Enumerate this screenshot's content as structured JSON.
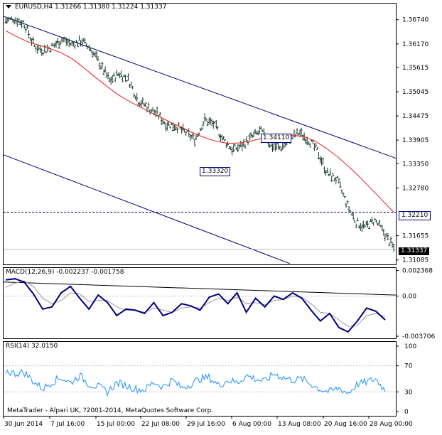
{
  "colors": {
    "candle": "#1c3f2e",
    "ma": "#e02020",
    "channel": "#000080",
    "macd_main": "#000080",
    "macd_signal": "#9a9a9a",
    "rsi": "#1e90ff",
    "level_line": "#000080",
    "tag_bg": "#ffffff",
    "tag_border": "#000080"
  },
  "main": {
    "header": "EURUSD,H4  1.31266 1.31380 1.31224 1.31337",
    "arrow_icon": "triangle-down-icon",
    "price_tag": "1.31337",
    "level_tag": "1.32210",
    "annotation_high": "1.34110",
    "annotation_low": "1.33320"
  },
  "macd": {
    "header": "MACD(12,26,9) -0.002237 -0.001758"
  },
  "rsi": {
    "header": "RSI(14) 32.0150",
    "footer": "MetaTrader - Alpari UK, ?2001-2014, MetaQuotes Software Corp."
  },
  "chart_data": [
    {
      "type": "line",
      "title": "EURUSD,H4",
      "ohlc_current": {
        "open": 1.31266,
        "high": 1.3138,
        "low": 1.31224,
        "close": 1.31337
      },
      "y_ticks": [
        "1.36740",
        "1.36170",
        "1.35615",
        "1.35045",
        "1.34475",
        "1.33905",
        "1.33350",
        "1.32780",
        "1.31655",
        "1.31085"
      ],
      "ylim": [
        1.3098,
        1.3712
      ],
      "x_ticks": [
        "30 Jun 2014",
        "7 Jul 16:00",
        "15 Jul 00:00",
        "22 Jul 08:00",
        "29 Jul 16:00",
        "6 Aug 00:00",
        "13 Aug 08:00",
        "20 Aug 16:00",
        "28 Aug 00:00"
      ],
      "price_path": [
        1.3672,
        1.3676,
        1.3664,
        1.3612,
        1.3602,
        1.3612,
        1.3628,
        1.3615,
        1.3625,
        1.3605,
        1.3568,
        1.353,
        1.3548,
        1.3532,
        1.3485,
        1.3468,
        1.3452,
        1.3428,
        1.3424,
        1.3408,
        1.3392,
        1.3438,
        1.3428,
        1.3392,
        1.3368,
        1.3378,
        1.3398,
        1.3412,
        1.3378,
        1.3372,
        1.3392,
        1.3408,
        1.3392,
        1.3362,
        1.3312,
        1.3298,
        1.3242,
        1.3198,
        1.3185,
        1.3202,
        1.3172,
        1.3136
      ],
      "moving_average": [
        1.3648,
        1.3634,
        1.3622,
        1.3614,
        1.3606,
        1.3596,
        1.3582,
        1.3562,
        1.354,
        1.352,
        1.35,
        1.3484,
        1.347,
        1.3457,
        1.3444,
        1.3431,
        1.3419,
        1.3406,
        1.3396,
        1.3388,
        1.3383,
        1.3384,
        1.3388,
        1.3394,
        1.3398,
        1.3402,
        1.3402,
        1.3398,
        1.3387,
        1.337,
        1.335,
        1.3327,
        1.3302,
        1.3275,
        1.3248,
        1.3221
      ],
      "level_line": 1.3221,
      "channel": {
        "upper": [
          [
            0,
            1.3682
          ],
          [
            1,
            1.3348
          ]
        ],
        "lower": [
          [
            0,
            1.3356
          ],
          [
            0.73,
            1.31
          ]
        ]
      },
      "annotations": [
        "1.34110",
        "1.33320"
      ]
    },
    {
      "type": "line",
      "title": "MACD(12,26,9)",
      "values": {
        "main": -0.002237,
        "signal": -0.001758
      },
      "y_ticks": [
        "0.002368",
        "0.00",
        "-0.003706"
      ],
      "ylim": [
        -0.0039,
        0.0026
      ],
      "main_path": [
        0.0015,
        0.0016,
        0.0013,
        0.0002,
        -0.0012,
        -0.001,
        0.0003,
        0.0009,
        -0.0002,
        -0.0012,
        0.0001,
        -0.0006,
        -0.0018,
        -0.0012,
        -0.0013,
        -0.0016,
        -0.0006,
        -0.0018,
        -0.0015,
        -0.0007,
        -0.0009,
        -0.0013,
        -0.0001,
        0.0002,
        -0.0007,
        0.0003,
        -0.0015,
        -0.0002,
        -0.001,
        0.0,
        -0.0003,
        0.0003,
        -0.0002,
        -0.0013,
        -0.0023,
        -0.0016,
        -0.0029,
        -0.0033,
        -0.0023,
        -0.0011,
        -0.0014,
        -0.0022
      ],
      "signal_path": [
        0.0008,
        0.0012,
        0.0014,
        0.0009,
        -0.0002,
        -0.0007,
        -0.0004,
        0.0003,
        0.0002,
        -0.0005,
        -0.0004,
        -0.0004,
        -0.001,
        -0.0013,
        -0.0013,
        -0.0015,
        -0.0011,
        -0.0013,
        -0.0015,
        -0.0011,
        -0.001,
        -0.0011,
        -0.0006,
        -0.0002,
        -0.0004,
        -0.0001,
        -0.0007,
        -0.0006,
        -0.0008,
        -0.0004,
        -0.0003,
        0.0,
        -0.0001,
        -0.0007,
        -0.0015,
        -0.0016,
        -0.0022,
        -0.0028,
        -0.0027,
        -0.0018,
        -0.0016,
        -0.0019
      ],
      "trendline": [
        [
          0,
          0.0013
        ],
        [
          1,
          0.0001
        ]
      ]
    },
    {
      "type": "line",
      "title": "RSI(14)",
      "value": 32.015,
      "y_ticks": [
        "100",
        "70",
        "30",
        "0"
      ],
      "ylim": [
        0,
        100
      ],
      "levels": [
        70,
        30
      ],
      "values": [
        62,
        58,
        60,
        46,
        35,
        45,
        52,
        44,
        55,
        42,
        38,
        30,
        44,
        40,
        35,
        33,
        45,
        38,
        48,
        36,
        42,
        50,
        52,
        40,
        48,
        44,
        55,
        50,
        46,
        58,
        52,
        48,
        50,
        42,
        34,
        30,
        36,
        28,
        42,
        45,
        50,
        32
      ]
    }
  ]
}
